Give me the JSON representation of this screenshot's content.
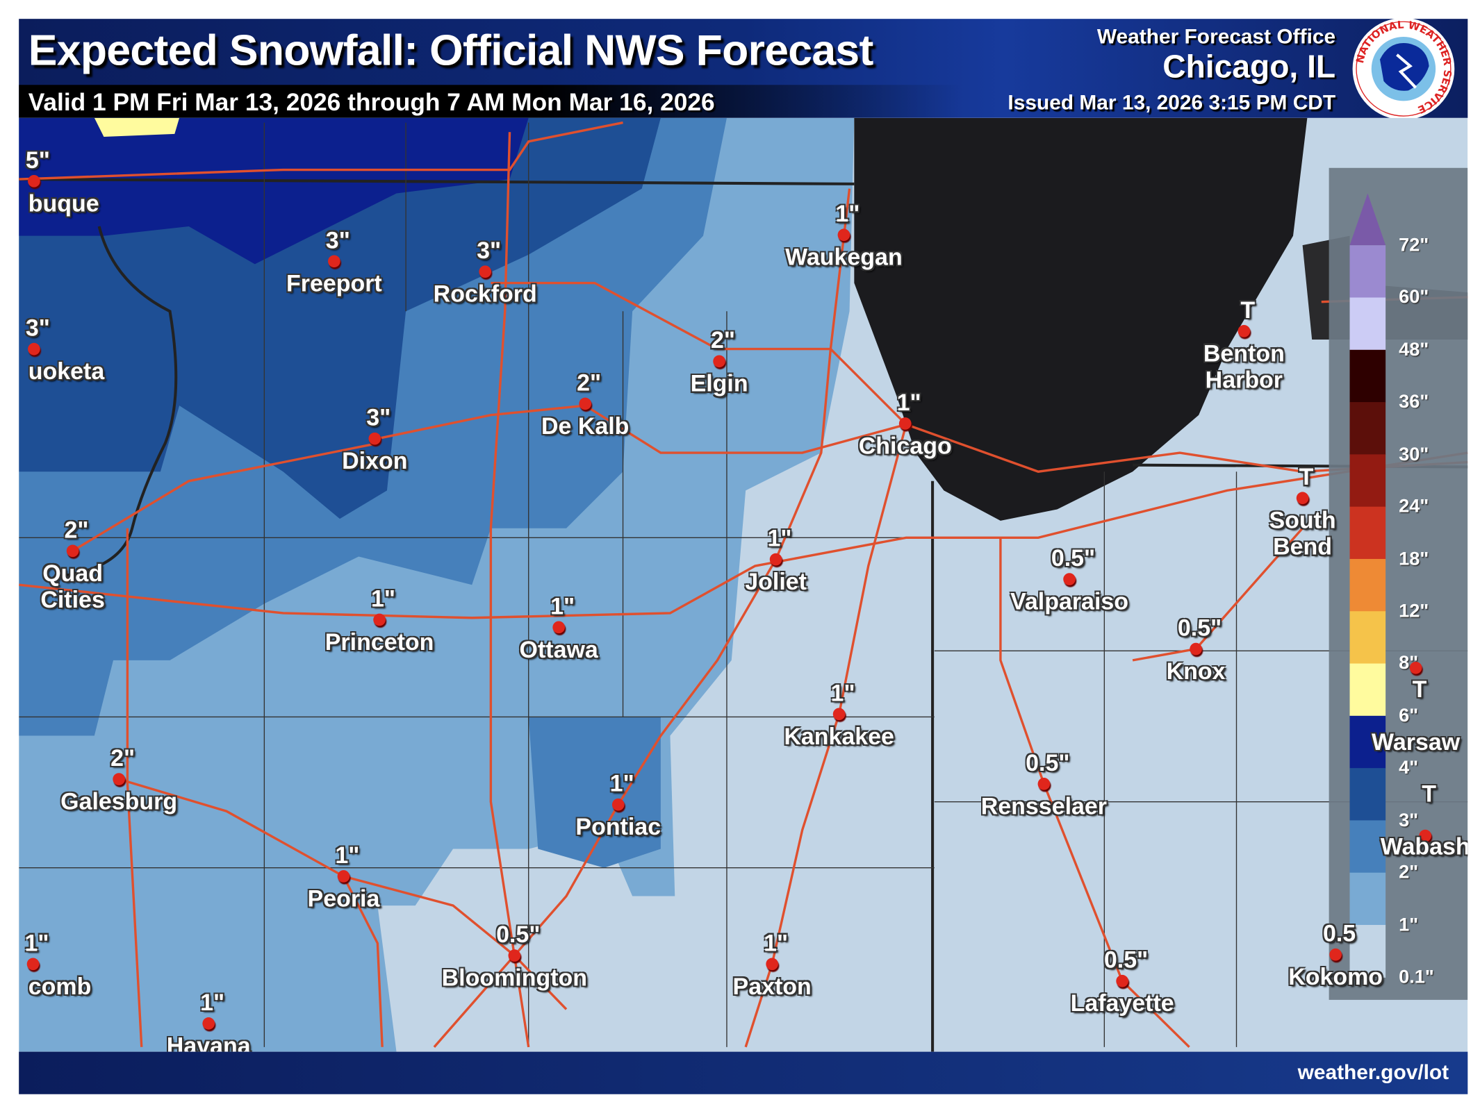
{
  "header": {
    "title": "Expected Snowfall: Official NWS Forecast",
    "valid": "Valid 1 PM Fri Mar 13, 2026 through 7 AM Mon Mar 16, 2026",
    "office_label": "Weather Forecast Office",
    "office_city": "Chicago, IL",
    "issued": "Issued Mar 13, 2026 3:15 PM CDT",
    "logo_text": "NATIONAL WEATHER SERVICE"
  },
  "cities": [
    {
      "name": "buque",
      "value": "5\""
    },
    {
      "name": "uoketa",
      "value": "3\""
    },
    {
      "name": "Freeport",
      "value": "3\""
    },
    {
      "name": "Rockford",
      "value": "3\""
    },
    {
      "name": "Waukegan",
      "value": "1\""
    },
    {
      "name": "Elgin",
      "value": "2\""
    },
    {
      "name": "De Kalb",
      "value": "2\""
    },
    {
      "name": "Dixon",
      "value": "3\""
    },
    {
      "name": "Chicago",
      "value": "1\""
    },
    {
      "name": "Benton\nHarbor",
      "value": "T"
    },
    {
      "name": "South\nBend",
      "value": "T"
    },
    {
      "name": "Quad\nCities",
      "value": "2\""
    },
    {
      "name": "Joliet",
      "value": "1\""
    },
    {
      "name": "Valparaiso",
      "value": "0.5\""
    },
    {
      "name": "Princeton",
      "value": "1\""
    },
    {
      "name": "Ottawa",
      "value": "1\""
    },
    {
      "name": "Knox",
      "value": "0.5\""
    },
    {
      "name": "Warsaw",
      "value": "T"
    },
    {
      "name": "Kankakee",
      "value": "1\""
    },
    {
      "name": "Galesburg",
      "value": "2\""
    },
    {
      "name": "Rensselaer",
      "value": "0.5\""
    },
    {
      "name": "Pontiac",
      "value": "1\""
    },
    {
      "name": "Wabash",
      "value": "T"
    },
    {
      "name": "Peoria",
      "value": "1\""
    },
    {
      "name": "Bloomington",
      "value": "0.5\""
    },
    {
      "name": "Paxton",
      "value": "1\""
    },
    {
      "name": "Kokomo",
      "value": "0.5"
    },
    {
      "name": "Lafayette",
      "value": "0.5\""
    },
    {
      "name": "comb",
      "value": "1\""
    },
    {
      "name": "Havana",
      "value": "1\""
    }
  ],
  "legend": {
    "labels": [
      "72\"",
      "60\"",
      "48\"",
      "36\"",
      "30\"",
      "24\"",
      "18\"",
      "12\"",
      "8\"",
      "6\"",
      "4\"",
      "3\"",
      "2\"",
      "1\"",
      "0.1\""
    ],
    "colors": [
      "#9b8ad0",
      "#ccccf5",
      "#2e0000",
      "#5c0f0a",
      "#931b12",
      "#cc3320",
      "#ee8a35",
      "#f5c34a",
      "#fffb9e",
      "#0c208e",
      "#1e4f95",
      "#4680bb",
      "#79aad3",
      "#c2d5e6"
    ],
    "top_arrow_color": "#7a5aa8"
  },
  "colors": {
    "lake": "#1b1b1e",
    "roads": "#e0502e",
    "city_dot": "#e0261c"
  },
  "footer": {
    "url": "weather.gov/lot"
  }
}
